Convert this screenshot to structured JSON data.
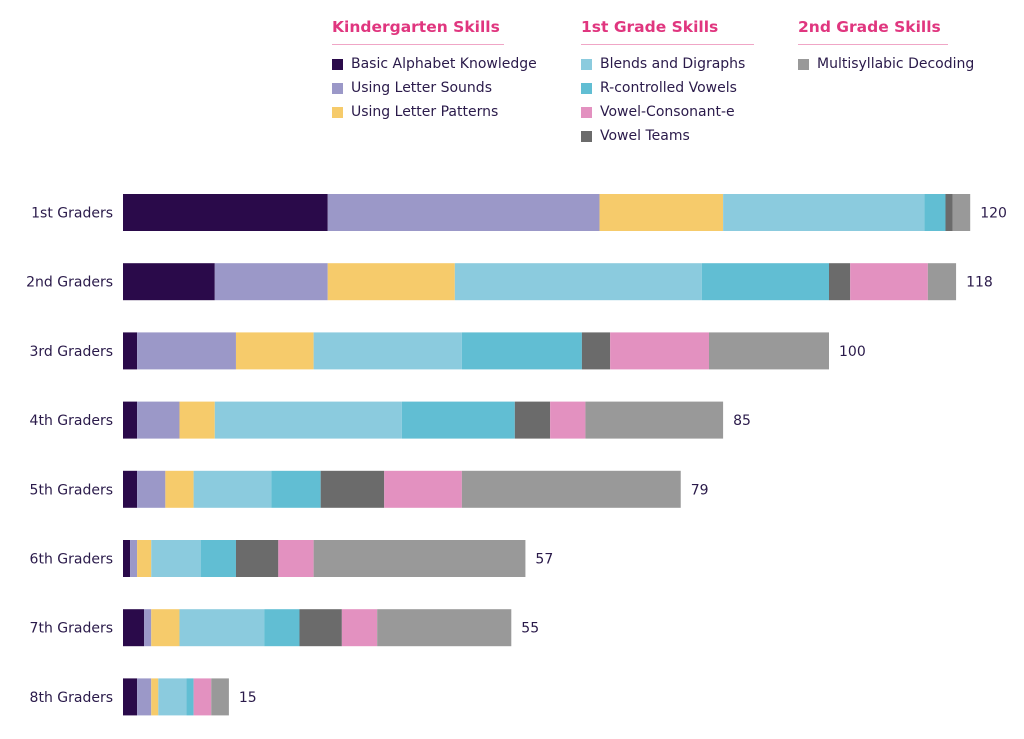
{
  "chart_data": {
    "type": "bar",
    "orientation": "horizontal",
    "stacked": true,
    "title": "",
    "xlabel": "",
    "ylabel": "",
    "grid": false,
    "legend_position": "top",
    "categories": [
      "1st Graders",
      "2nd Graders",
      "3rd Graders",
      "4th Graders",
      "5th Graders",
      "6th Graders",
      "7th Graders",
      "8th Graders"
    ],
    "totals": [
      120,
      118,
      100,
      85,
      79,
      57,
      55,
      15
    ],
    "legend_groups": [
      {
        "title": "Kindergarten Skills",
        "series": [
          "Basic Alphabet Knowledge",
          "Using Letter Sounds",
          "Using Letter Patterns"
        ]
      },
      {
        "title": "1st Grade Skills",
        "series": [
          "Blends and Digraphs",
          "R-controlled Vowels",
          "Vowel-Consonant-e",
          "Vowel Teams"
        ]
      },
      {
        "title": "2nd Grade Skills",
        "series": [
          "Multisyllabic Decoding"
        ]
      }
    ],
    "series": [
      {
        "name": "Basic Alphabet Knowledge",
        "color": "#2a0a4a",
        "values": [
          29,
          13,
          2,
          2,
          2,
          1,
          3,
          2
        ]
      },
      {
        "name": "Using Letter Sounds",
        "color": "#9b98c8",
        "values": [
          38.5,
          16,
          14,
          6,
          4,
          1,
          1,
          2
        ]
      },
      {
        "name": "Using Letter Patterns",
        "color": "#f6cb6b",
        "values": [
          17.5,
          18,
          11,
          5,
          4,
          2,
          4,
          1
        ]
      },
      {
        "name": "Blends and Digraphs",
        "color": "#8bcbde",
        "values": [
          28.5,
          35,
          21,
          26.5,
          11,
          7,
          12,
          4
        ]
      },
      {
        "name": "R-controlled Vowels",
        "color": "#61bed3",
        "values": [
          3,
          18,
          17,
          16,
          7,
          5,
          5,
          1
        ]
      },
      {
        "name": "Vowel Teams",
        "color": "#6b6b6b",
        "values": [
          1,
          3,
          4,
          5,
          9,
          6,
          6,
          0
        ]
      },
      {
        "name": "Vowel-Consonant-e",
        "color": "#e391c0",
        "values": [
          0,
          11,
          14,
          5,
          11,
          5,
          5,
          2.5
        ]
      },
      {
        "name": "Multisyllabic Decoding",
        "color": "#999999",
        "values": [
          2.5,
          4,
          17,
          19.5,
          31,
          30,
          19,
          2.5
        ]
      }
    ]
  }
}
